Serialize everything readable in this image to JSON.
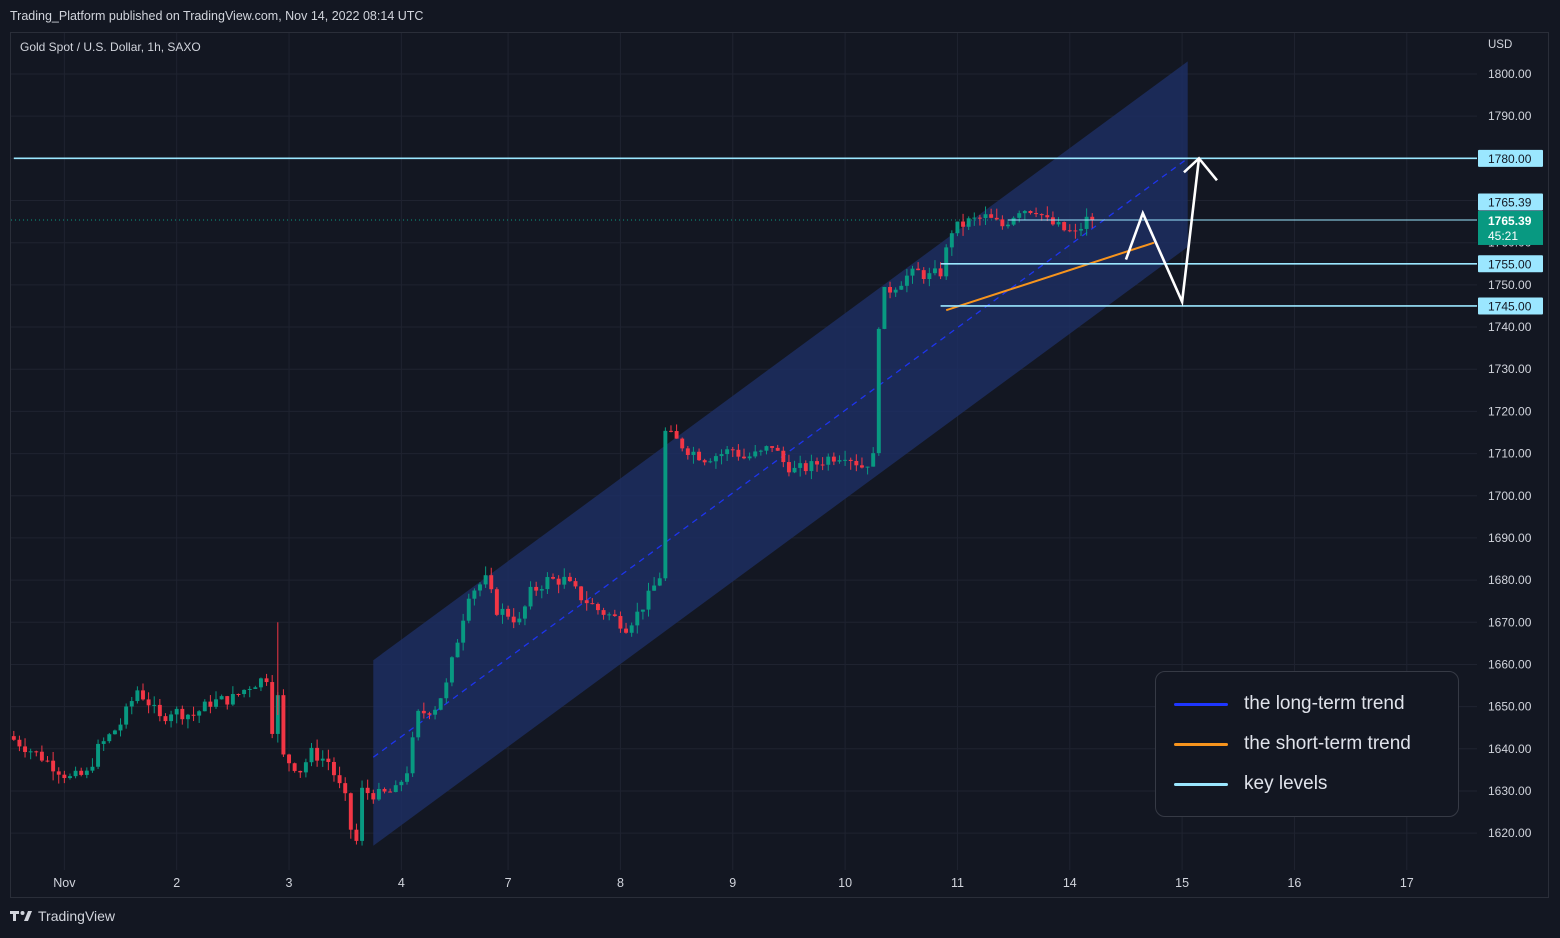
{
  "header": {
    "publish_text": "Trading_Platform published on TradingView.com, Nov 14, 2022 08:14 UTC"
  },
  "symbol_title": "Gold Spot / U.S. Dollar, 1h, SAXO",
  "currency": "USD",
  "footer": {
    "brand": "TradingView"
  },
  "chart_data": {
    "type": "candlestick",
    "instrument": "Gold Spot / U.S. Dollar",
    "interval": "1h",
    "y_axis": {
      "ylim": [
        1614,
        1812
      ],
      "ticks": [
        "1620.00",
        "1630.00",
        "1640.00",
        "1650.00",
        "1660.00",
        "1670.00",
        "1680.00",
        "1690.00",
        "1700.00",
        "1710.00",
        "1720.00",
        "1730.00",
        "1740.00",
        "1750.00",
        "1760.00",
        "1770.00",
        "1780.00",
        "1790.00",
        "1800.00"
      ]
    },
    "x_axis": {
      "ticks": [
        {
          "label": "Nov",
          "bar": 9
        },
        {
          "label": "2",
          "bar": 29
        },
        {
          "label": "3",
          "bar": 49
        },
        {
          "label": "4",
          "bar": 69
        },
        {
          "label": "7",
          "bar": 88
        },
        {
          "label": "8",
          "bar": 108
        },
        {
          "label": "9",
          "bar": 128
        },
        {
          "label": "10",
          "bar": 148
        },
        {
          "label": "11",
          "bar": 168
        },
        {
          "label": "14",
          "bar": 188
        },
        {
          "label": "15",
          "bar": 208
        },
        {
          "label": "16",
          "bar": 228
        },
        {
          "label": "17",
          "bar": 248
        }
      ],
      "bars_total": 261
    },
    "price_path": [
      [
        0,
        1643
      ],
      [
        6,
        1638
      ],
      [
        11,
        1633
      ],
      [
        14,
        1634
      ],
      [
        16,
        1640
      ],
      [
        20,
        1646
      ],
      [
        23,
        1654
      ],
      [
        25,
        1651
      ],
      [
        27,
        1647
      ],
      [
        29,
        1649
      ],
      [
        33,
        1648
      ],
      [
        36,
        1651
      ],
      [
        40,
        1652
      ],
      [
        43,
        1655
      ],
      [
        46,
        1657
      ],
      [
        47,
        1645
      ],
      [
        48,
        1652
      ],
      [
        49,
        1638
      ],
      [
        52,
        1635
      ],
      [
        54,
        1639
      ],
      [
        57,
        1637
      ],
      [
        60,
        1628
      ],
      [
        61,
        1621
      ],
      [
        62,
        1618
      ],
      [
        63,
        1630
      ],
      [
        66,
        1629
      ],
      [
        69,
        1630
      ],
      [
        71,
        1635
      ],
      [
        73,
        1648
      ],
      [
        76,
        1650
      ],
      [
        78,
        1655
      ],
      [
        80,
        1666
      ],
      [
        82,
        1677
      ],
      [
        85,
        1680
      ],
      [
        87,
        1673
      ],
      [
        89,
        1672
      ],
      [
        91,
        1670
      ],
      [
        93,
        1677
      ],
      [
        96,
        1680
      ],
      [
        99,
        1680
      ],
      [
        102,
        1676
      ],
      [
        105,
        1673
      ],
      [
        108,
        1671
      ],
      [
        110,
        1669
      ],
      [
        112,
        1672
      ],
      [
        114,
        1676
      ],
      [
        116,
        1681
      ],
      [
        117,
        1715
      ],
      [
        119,
        1713
      ],
      [
        121,
        1711
      ],
      [
        124,
        1709
      ],
      [
        127,
        1710
      ],
      [
        129,
        1711
      ],
      [
        131,
        1709
      ],
      [
        134,
        1710
      ],
      [
        136,
        1712
      ],
      [
        138,
        1708
      ],
      [
        140,
        1706
      ],
      [
        143,
        1707
      ],
      [
        146,
        1709
      ],
      [
        149,
        1710
      ],
      [
        151,
        1708
      ],
      [
        152,
        1707
      ],
      [
        154,
        1709
      ],
      [
        155,
        1741
      ],
      [
        156,
        1748
      ],
      [
        158,
        1750
      ],
      [
        160,
        1752
      ],
      [
        162,
        1753
      ],
      [
        164,
        1752
      ],
      [
        166,
        1753
      ],
      [
        168,
        1763
      ],
      [
        171,
        1765
      ],
      [
        174,
        1766
      ],
      [
        177,
        1764
      ],
      [
        180,
        1768
      ],
      [
        183,
        1768
      ],
      [
        185,
        1765
      ],
      [
        188,
        1763
      ],
      [
        190,
        1762
      ],
      [
        192,
        1765.39
      ]
    ],
    "last_price": "1765.39",
    "countdown": "45:21",
    "key_levels": [
      {
        "value": 1780.0,
        "label": "1780.00",
        "from_bar": 0
      },
      {
        "value": 1765.39,
        "label": "1765.39",
        "from_bar": 177
      },
      {
        "value": 1755.0,
        "label": "1755.00",
        "from_bar": 165
      },
      {
        "value": 1745.0,
        "label": "1745.00",
        "from_bar": 165
      }
    ],
    "channel": {
      "from_bar": 64,
      "to_bar": 209,
      "mid_start": 1638,
      "mid_end": 1780,
      "upper_offset": 23,
      "lower_offset": 21
    },
    "short_term_trend": {
      "from": [
        166,
        1744
      ],
      "to": [
        203,
        1760
      ]
    },
    "projection_path": [
      [
        198,
        1756
      ],
      [
        201,
        1767
      ],
      [
        208,
        1746
      ],
      [
        211,
        1780
      ]
    ],
    "colors": {
      "background": "#131722",
      "grid": "#1f2330",
      "up_candle": "#089981",
      "down_candle": "#f23645",
      "long_term_trend": "#1e36ff",
      "short_term_trend": "#f7941d",
      "key_levels": "#9be7ff",
      "channel_fill": "#1e2f66",
      "last_price_label": "#089981"
    }
  },
  "legend": {
    "items": [
      {
        "label": "the long-term trend",
        "color": "#1e36ff"
      },
      {
        "label": "the short-term trend",
        "color": "#f7941d"
      },
      {
        "label": "key levels",
        "color": "#9be7ff"
      }
    ]
  }
}
